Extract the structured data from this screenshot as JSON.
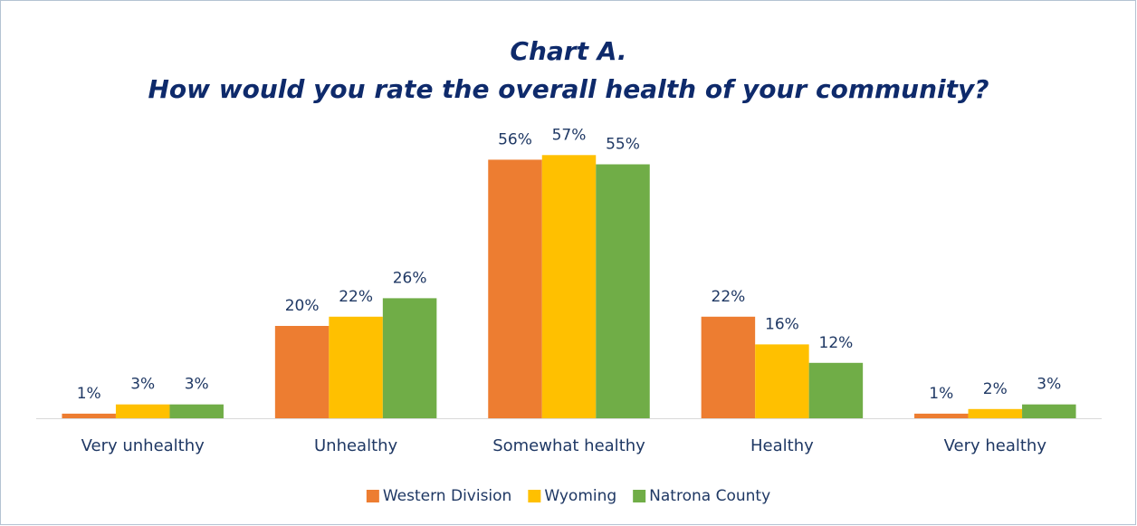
{
  "chart_data": {
    "type": "bar",
    "title": "Chart A.",
    "subtitle": "How would you rate the overall health of your community?",
    "categories": [
      "Very unhealthy",
      "Unhealthy",
      "Somewhat healthy",
      "Healthy",
      "Very healthy"
    ],
    "series": [
      {
        "name": "Western Division",
        "color": "#ED7D31",
        "values": [
          1,
          20,
          56,
          22,
          1
        ],
        "value_labels": [
          "1%",
          "20%",
          "56%",
          "22%",
          "1%"
        ]
      },
      {
        "name": "Wyoming",
        "color": "#FFC000",
        "values": [
          3,
          22,
          57,
          16,
          2
        ],
        "value_labels": [
          "3%",
          "22%",
          "57%",
          "16%",
          "2%"
        ]
      },
      {
        "name": "Natrona County",
        "color": "#70AD47",
        "values": [
          3,
          26,
          55,
          12,
          3
        ],
        "value_labels": [
          "3%",
          "26%",
          "55%",
          "12%",
          "3%"
        ]
      }
    ],
    "ylim": [
      0,
      60
    ],
    "legend": "bottom"
  }
}
